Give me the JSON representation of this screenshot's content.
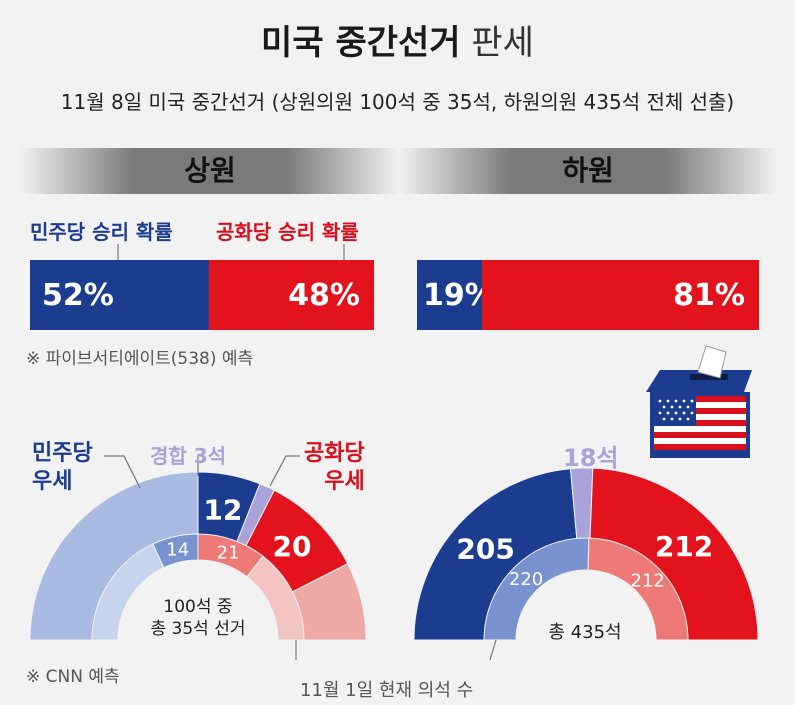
{
  "title": {
    "bold": "미국 중간선거",
    "light": "판세"
  },
  "subtitle": "11월 8일 미국 중간선거 (상원의원 100석 중 35석, 하원의원 435석 전체 선출)",
  "senate_label": "상원",
  "house_label": "하원",
  "dem_prob_label": "민주당 승리 확률",
  "rep_prob_label": "공화당 승리 확률",
  "source_538": "※ 파이브서티에이트(538) 예측",
  "source_cnn": "※ CNN 예측",
  "annot_dem": "민주당\n우세",
  "annot_rep": "공화당\n우세",
  "annot_tossup": "경합 3석",
  "annot_house_tossup": "18석",
  "senate_center": "100석 중\n총 35석 선거",
  "house_center": "총 435석",
  "current_seats_note": "11월 1일 현재 의석 수",
  "colors": {
    "dem": "#1c3d8f",
    "rep": "#e3131e",
    "dem_light": "#a9bbe3",
    "rep_light": "#eea8a6",
    "tossup": "#a9a3d9"
  },
  "chart_data": [
    {
      "type": "bar",
      "title": "상원",
      "categories": [
        "민주당 승리 확률",
        "공화당 승리 확률"
      ],
      "values": [
        52,
        48
      ],
      "value_labels": [
        "52%",
        "48%"
      ],
      "unit": "%"
    },
    {
      "type": "bar",
      "title": "하원",
      "categories": [
        "민주당",
        "공화당"
      ],
      "values": [
        19,
        81
      ],
      "value_labels": [
        "19%",
        "81%"
      ],
      "unit": "%"
    },
    {
      "type": "pie",
      "title": "상원",
      "outer": {
        "dem_safe": 50,
        "dem_lean": 12,
        "tossup": 3,
        "rep_lean": 20,
        "rep_safe": 15
      },
      "outer_labels": {
        "dem_lean": "12",
        "tossup": "3",
        "rep_lean": "20"
      },
      "inner": {
        "dem_safe": 36,
        "dem_up": 14,
        "rep_up": 21,
        "rep_safe": 29
      },
      "inner_labels": {
        "dem_up": "14",
        "rep_up": "21"
      }
    },
    {
      "type": "pie",
      "title": "하원",
      "outer": {
        "dem": 205,
        "tossup": 18,
        "rep": 212
      },
      "outer_labels": {
        "dem": "205",
        "tossup": "18석",
        "rep": "212"
      },
      "inner": {
        "dem": 220,
        "rep": 212
      },
      "inner_labels": {
        "dem": "220",
        "rep": "212"
      }
    }
  ]
}
